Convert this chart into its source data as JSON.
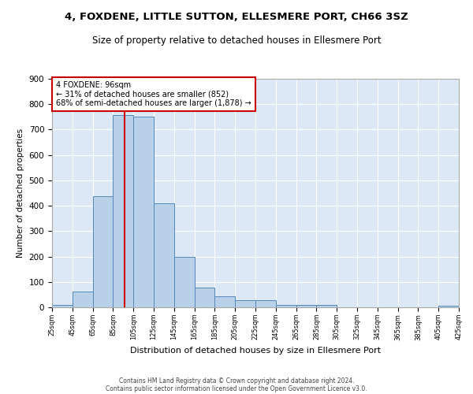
{
  "title": "4, FOXDENE, LITTLE SUTTON, ELLESMERE PORT, CH66 3SZ",
  "subtitle": "Size of property relative to detached houses in Ellesmere Port",
  "xlabel": "Distribution of detached houses by size in Ellesmere Port",
  "ylabel": "Number of detached properties",
  "footnote1": "Contains HM Land Registry data © Crown copyright and database right 2024.",
  "footnote2": "Contains public sector information licensed under the Open Government Licence v3.0.",
  "annotation_line1": "4 FOXDENE: 96sqm",
  "annotation_line2": "← 31% of detached houses are smaller (852)",
  "annotation_line3": "68% of semi-detached houses are larger (1,878) →",
  "bar_color": "#b8d0e8",
  "bar_edge_color": "#5588bb",
  "bg_color": "#dce8f5",
  "grid_color": "#ffffff",
  "property_value": 96,
  "vline_color": "#cc0000",
  "bins": [
    25,
    45,
    65,
    85,
    105,
    125,
    145,
    165,
    185,
    205,
    225,
    245,
    265,
    285,
    305,
    325,
    345,
    365,
    385,
    405,
    425
  ],
  "counts": [
    10,
    63,
    438,
    757,
    752,
    410,
    198,
    78,
    45,
    28,
    27,
    10,
    10,
    8,
    0,
    0,
    0,
    0,
    0,
    5
  ],
  "ylim": [
    0,
    900
  ],
  "yticks": [
    0,
    100,
    200,
    300,
    400,
    500,
    600,
    700,
    800,
    900
  ]
}
